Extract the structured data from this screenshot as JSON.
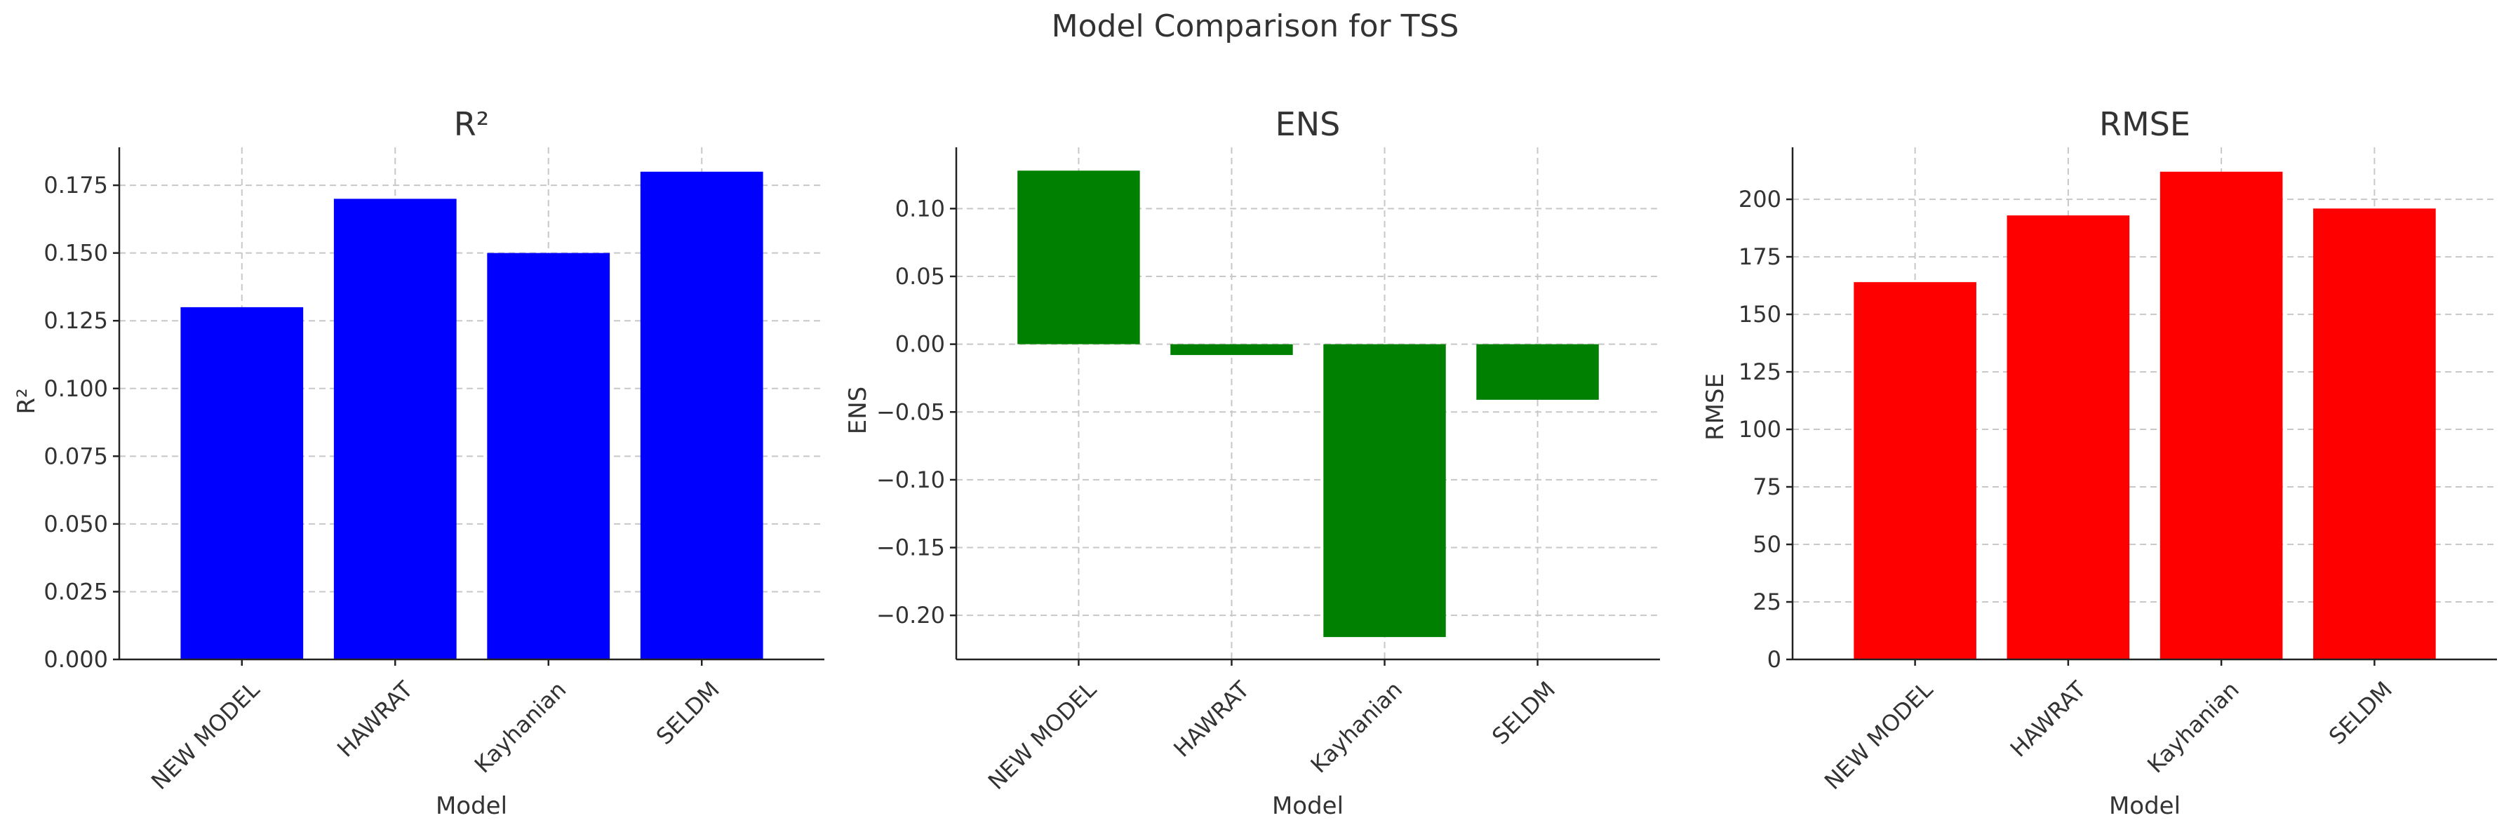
{
  "figure": {
    "title": "Model Comparison for TSS"
  },
  "chart_data": [
    {
      "type": "bar",
      "title": "R²",
      "xlabel": "Model",
      "ylabel": "R²",
      "categories": [
        "NEW MODEL",
        "HAWRAT",
        "Kayhanian",
        "SELDM"
      ],
      "values": [
        0.13,
        0.17,
        0.15,
        0.18
      ],
      "ylim": [
        0,
        0.189
      ],
      "yticks": [
        0.0,
        0.025,
        0.05,
        0.075,
        0.1,
        0.125,
        0.15,
        0.175
      ],
      "ytick_labels": [
        "0.000",
        "0.025",
        "0.050",
        "0.075",
        "0.100",
        "0.125",
        "0.150",
        "0.175"
      ],
      "color": "#0000ff",
      "grid": true,
      "legend": "none"
    },
    {
      "type": "bar",
      "title": "ENS",
      "xlabel": "Model",
      "ylabel": "ENS",
      "categories": [
        "NEW MODEL",
        "HAWRAT",
        "Kayhanian",
        "SELDM"
      ],
      "values": [
        0.128,
        -0.008,
        -0.216,
        -0.041
      ],
      "ylim": [
        -0.2325,
        0.1452
      ],
      "yticks": [
        -0.2,
        -0.15,
        -0.1,
        -0.05,
        0.0,
        0.05,
        0.1
      ],
      "ytick_labels": [
        "−0.20",
        "−0.15",
        "−0.10",
        "−0.05",
        "0.00",
        "0.05",
        "0.10"
      ],
      "color": "#008000",
      "grid": true,
      "legend": "none"
    },
    {
      "type": "bar",
      "title": "RMSE",
      "xlabel": "Model",
      "ylabel": "RMSE",
      "categories": [
        "NEW MODEL",
        "HAWRAT",
        "Kayhanian",
        "SELDM"
      ],
      "values": [
        164,
        193,
        212,
        196
      ],
      "ylim": [
        0,
        222.6
      ],
      "yticks": [
        0,
        25,
        50,
        75,
        100,
        125,
        150,
        175,
        200
      ],
      "ytick_labels": [
        "0",
        "25",
        "50",
        "75",
        "100",
        "125",
        "150",
        "175",
        "200"
      ],
      "color": "#ff0000",
      "grid": true,
      "legend": "none"
    }
  ]
}
